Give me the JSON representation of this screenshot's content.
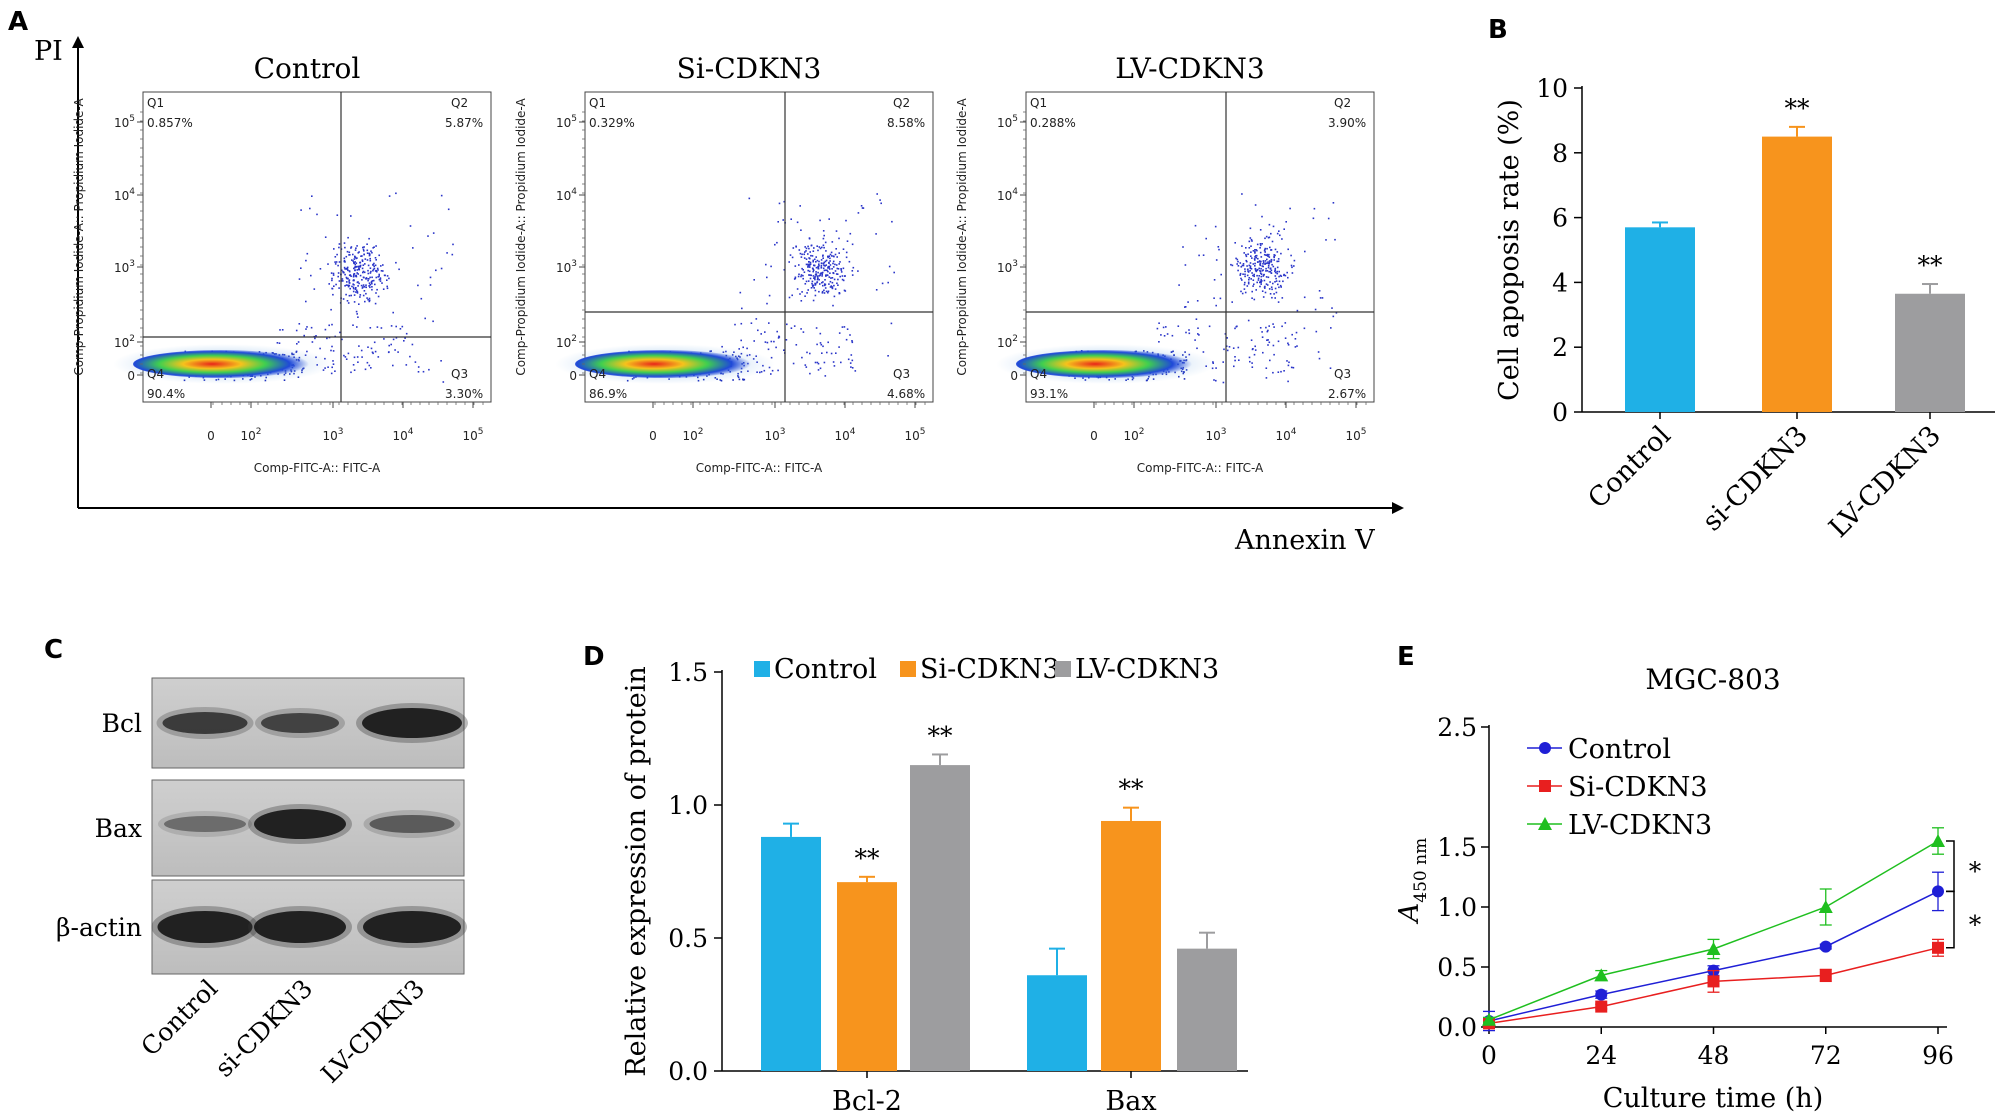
{
  "panels": {
    "a": "A",
    "b": "B",
    "c": "C",
    "d": "D",
    "e": "E"
  },
  "flow": {
    "y_axis_label": "PI",
    "x_axis_label": "Annexin V",
    "plot_y_label": "Comp-Propidium Iodide-A:: Propidium Iodide-A",
    "plot_x_label": "Comp-FITC-A:: FITC-A",
    "x_ticks": [
      "0",
      "10",
      "10",
      "10",
      "10"
    ],
    "x_tick_exps": [
      "",
      "2",
      "3",
      "4",
      "5"
    ],
    "y_ticks": [
      "0",
      "10",
      "10",
      "10",
      "10"
    ],
    "y_tick_exps": [
      "",
      "2",
      "3",
      "4",
      "5"
    ],
    "plots": [
      {
        "title": "Control",
        "q1": "Q1",
        "q1v": "0.857%",
        "q2": "Q2",
        "q2v": "5.87%",
        "q3": "Q3",
        "q3v": "3.30%",
        "q4": "Q4",
        "q4v": "90.4%"
      },
      {
        "title": "Si-CDKN3",
        "q1": "Q1",
        "q1v": "0.329%",
        "q2": "Q2",
        "q2v": "8.58%",
        "q3": "Q3",
        "q3v": "4.68%",
        "q4": "Q4",
        "q4v": "86.9%"
      },
      {
        "title": "LV-CDKN3",
        "q1": "Q1",
        "q1v": "0.288%",
        "q2": "Q2",
        "q2v": "3.90%",
        "q3": "Q3",
        "q3v": "2.67%",
        "q4": "Q4",
        "q4v": "93.1%"
      }
    ]
  },
  "western": {
    "bands": [
      "Bcl",
      "Bax",
      "β-actin"
    ],
    "lanes": [
      "Control",
      "si-CDKN3",
      "LV-CDKN3"
    ]
  },
  "colors": {
    "control": "#1fb0e6",
    "si": "#f7941d",
    "lv": "#9d9d9f",
    "ctrl_line": "#1f1fd6",
    "si_line": "#e81f1f",
    "lv_line": "#1fbf1f"
  },
  "chart_data": [
    {
      "panel": "B",
      "type": "bar",
      "categories": [
        "Control",
        "si-CDKN3",
        "LV-CDKN3"
      ],
      "values": [
        5.7,
        8.5,
        3.65
      ],
      "errors": [
        0.15,
        0.3,
        0.3
      ],
      "significance": [
        "",
        "**",
        "**"
      ],
      "ylabel": "Cell apoposis rate (%)",
      "ylim": [
        0,
        10
      ],
      "yticks": [
        "0",
        "2",
        "4",
        "6",
        "8",
        "10"
      ]
    },
    {
      "panel": "D",
      "type": "bar",
      "categories": [
        "Bcl-2",
        "Bax"
      ],
      "series": [
        {
          "name": "Control",
          "values": [
            0.88,
            0.36
          ],
          "errors": [
            0.05,
            0.1
          ],
          "significance": [
            "",
            ""
          ]
        },
        {
          "name": "Si-CDKN3",
          "values": [
            0.71,
            0.94
          ],
          "errors": [
            0.02,
            0.05
          ],
          "significance": [
            "**",
            "**"
          ]
        },
        {
          "name": "LV-CDKN3",
          "values": [
            1.15,
            0.46
          ],
          "errors": [
            0.04,
            0.06
          ],
          "significance": [
            "**",
            ""
          ]
        }
      ],
      "ylabel": "Relative expression of protein",
      "ylim": [
        0,
        1.5
      ],
      "yticks": [
        "0.0",
        "0.5",
        "1.0",
        "1.5"
      ],
      "legend": "top"
    },
    {
      "panel": "E",
      "type": "line",
      "title": "MGC-803",
      "x": [
        0,
        24,
        48,
        72,
        96
      ],
      "xticks": [
        "0",
        "24",
        "48",
        "72",
        "96"
      ],
      "series": [
        {
          "name": "Control",
          "values": [
            0.05,
            0.27,
            0.47,
            0.67,
            1.13
          ],
          "errors": [
            0.08,
            0.03,
            0.04,
            0.02,
            0.16
          ]
        },
        {
          "name": "Si-CDKN3",
          "values": [
            0.03,
            0.17,
            0.38,
            0.43,
            0.66
          ],
          "errors": [
            0.02,
            0.02,
            0.09,
            0.05,
            0.07
          ]
        },
        {
          "name": "LV-CDKN3",
          "values": [
            0.06,
            0.43,
            0.65,
            1.0,
            1.55
          ],
          "errors": [
            0.02,
            0.04,
            0.08,
            0.15,
            0.11
          ]
        }
      ],
      "xlabel": "Culture time (h)",
      "ylabel_main": "A",
      "ylabel_sub": "450 nm",
      "ylim": [
        0,
        2.5
      ],
      "yticks": [
        "0.0",
        "0.5",
        "1.0",
        "1.5",
        "2.5"
      ],
      "significance": [
        "*",
        "*"
      ],
      "legend": "top-left"
    }
  ]
}
